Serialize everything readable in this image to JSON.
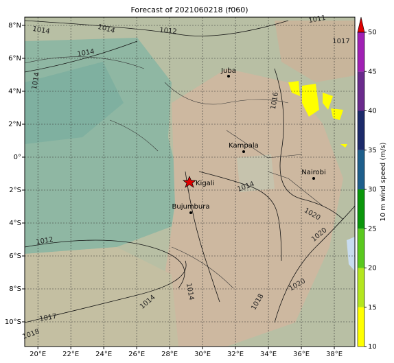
{
  "map": {
    "title": "Forecast of 2021060218 (f060)",
    "xlim": [
      19.2,
      39.25
    ],
    "ylim": [
      -11.5,
      8.5
    ],
    "xticks": [
      {
        "value": 20,
        "label": "20°E"
      },
      {
        "value": 22,
        "label": "22°E"
      },
      {
        "value": 24,
        "label": "24°E"
      },
      {
        "value": 26,
        "label": "26°E"
      },
      {
        "value": 28,
        "label": "28°E"
      },
      {
        "value": 30,
        "label": "30°E"
      },
      {
        "value": 32,
        "label": "32°E"
      },
      {
        "value": 34,
        "label": "34°E"
      },
      {
        "value": 36,
        "label": "36°E"
      },
      {
        "value": 38,
        "label": "38°E"
      }
    ],
    "yticks": [
      {
        "value": 8,
        "label": "8°N"
      },
      {
        "value": 6,
        "label": "6°N"
      },
      {
        "value": 4,
        "label": "4°N"
      },
      {
        "value": 2,
        "label": "2°N"
      },
      {
        "value": 0,
        "label": "0°"
      },
      {
        "value": -2,
        "label": "2°S"
      },
      {
        "value": -4,
        "label": "4°S"
      },
      {
        "value": -6,
        "label": "6°S"
      },
      {
        "value": -8,
        "label": "8°S"
      },
      {
        "value": -10,
        "label": "10°S"
      }
    ],
    "grid": true,
    "cities": [
      "Juba",
      "Kampala",
      "Kigali",
      "Bujumbura",
      "Nairobi"
    ],
    "isobar_labels": [
      "1014",
      "1014",
      "1012",
      "1014",
      "1014",
      "1011",
      "1017",
      "1016",
      "1014",
      "1020",
      "1020",
      "1012",
      "1014",
      "1017",
      "1018",
      "1020",
      "1018",
      "1014"
    ],
    "colorbar": {
      "label": "10 m wind speed (m/s)",
      "ticks": [
        10,
        15,
        20,
        25,
        30,
        35,
        40,
        45,
        50
      ],
      "colors": [
        "#ffff00",
        "#b4e61e",
        "#5ac81e",
        "#0a960a",
        "#1e5f8c",
        "#1c2a6a",
        "#6a2a8c",
        "#a020b4"
      ],
      "extend_color": "#e00000"
    }
  }
}
